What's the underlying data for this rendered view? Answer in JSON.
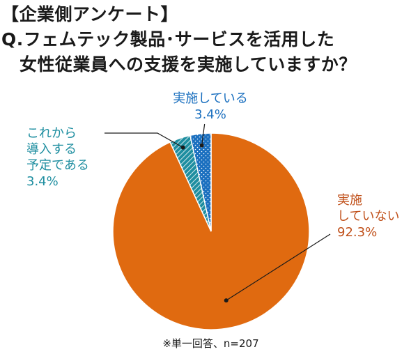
{
  "header": {
    "tag": "【企業側アンケート】",
    "question_line1": "Q.フェムテック製品･サービスを活用した",
    "question_line2": "女性従業員への支援を実施していますか？"
  },
  "footnote": "※単一回答、n=207",
  "colors": {
    "not_implemented": "#E06A10",
    "planned": "#1E8EA0",
    "implemented": "#1A6FBF",
    "label_not_implemented": "#C0501A",
    "label_planned": "#1E8EA0",
    "label_implemented": "#1A6FBF"
  },
  "chart_data": {
    "type": "pie",
    "total_n": 207,
    "slices": [
      {
        "label_lines": [
          "実施",
          "していない"
        ],
        "value": 92.3,
        "value_label": "92.3%",
        "color": "#E06A10",
        "pattern": "solid"
      },
      {
        "label_lines": [
          "これから",
          "導入する",
          "予定である"
        ],
        "value": 3.4,
        "value_label": "3.4%",
        "color": "#1E8EA0",
        "pattern": "hatch"
      },
      {
        "label_lines": [
          "実施している"
        ],
        "value": 3.4,
        "value_label": "3.4%",
        "color": "#1A6FBF",
        "pattern": "dots"
      }
    ]
  }
}
